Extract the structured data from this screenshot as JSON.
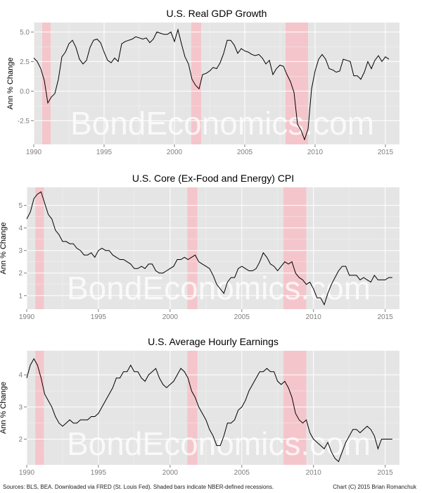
{
  "watermark": "BondEconomics.com",
  "source_note": "Sources: BLS, BEA. Downloaded via FRED (St. Louis Fed). Shaded bars indicate NBER-defined recessions.",
  "credit_note": "Chart (C) 2015 Brian Romanchuk",
  "colors": {
    "panel_bg": "#e5e5e5",
    "grid": "#ffffff",
    "line": "#000000",
    "recession": "#f4c6cc",
    "watermark": "#ffffff"
  },
  "chart_data": [
    {
      "type": "line",
      "title": "U.S. Real GDP Growth",
      "ylabel": "Ann % Change",
      "xlim": [
        1990,
        2016
      ],
      "ylim": [
        -4.5,
        5.8
      ],
      "xticks": [
        "1990",
        "1995",
        "2000",
        "2005",
        "2010",
        "2015"
      ],
      "yticks": [
        "-2.5",
        "0.0",
        "2.5",
        "5.0"
      ],
      "ytick_values": [
        -2.5,
        0,
        2.5,
        5
      ],
      "recessions": [
        [
          1990.6,
          1991.2
        ],
        [
          2001.2,
          2001.9
        ],
        [
          2007.9,
          2009.5
        ]
      ],
      "series": [
        {
          "x": [
            1990.0,
            1990.25,
            1990.5,
            1990.75,
            1991.0,
            1991.25,
            1991.5,
            1991.75,
            1992.0,
            1992.25,
            1992.5,
            1992.75,
            1993.0,
            1993.25,
            1993.5,
            1993.75,
            1994.0,
            1994.25,
            1994.5,
            1994.75,
            1995.0,
            1995.25,
            1995.5,
            1995.75,
            1996.0,
            1996.25,
            1996.5,
            1996.75,
            1997.0,
            1997.25,
            1997.5,
            1997.75,
            1998.0,
            1998.25,
            1998.5,
            1998.75,
            1999.0,
            1999.25,
            1999.5,
            1999.75,
            2000.0,
            2000.25,
            2000.5,
            2000.75,
            2001.0,
            2001.25,
            2001.5,
            2001.75,
            2002.0,
            2002.25,
            2002.5,
            2002.75,
            2003.0,
            2003.25,
            2003.5,
            2003.75,
            2004.0,
            2004.25,
            2004.5,
            2004.75,
            2005.0,
            2005.25,
            2005.5,
            2005.75,
            2006.0,
            2006.25,
            2006.5,
            2006.75,
            2007.0,
            2007.25,
            2007.5,
            2007.75,
            2008.0,
            2008.25,
            2008.5,
            2008.75,
            2009.0,
            2009.25,
            2009.5,
            2009.75,
            2010.0,
            2010.25,
            2010.5,
            2010.75,
            2011.0,
            2011.25,
            2011.5,
            2011.75,
            2012.0,
            2012.25,
            2012.5,
            2012.75,
            2013.0,
            2013.25,
            2013.5,
            2013.75,
            2014.0,
            2014.25,
            2014.5,
            2014.75,
            2015.0,
            2015.25
          ],
          "values": [
            2.8,
            2.5,
            1.9,
            0.9,
            -1.0,
            -0.5,
            -0.2,
            1.0,
            2.9,
            3.3,
            4.0,
            4.3,
            3.7,
            2.7,
            2.3,
            2.6,
            3.7,
            4.3,
            4.4,
            4.1,
            3.3,
            2.6,
            2.4,
            2.8,
            2.5,
            4.0,
            4.2,
            4.3,
            4.4,
            4.6,
            4.5,
            4.4,
            4.5,
            4.1,
            4.4,
            5.0,
            4.9,
            4.8,
            4.8,
            5.0,
            4.2,
            5.2,
            4.0,
            2.9,
            2.3,
            1.0,
            0.5,
            0.2,
            1.4,
            1.5,
            1.7,
            2.0,
            1.9,
            2.4,
            3.2,
            4.3,
            4.3,
            3.9,
            3.2,
            3.6,
            3.4,
            3.3,
            3.1,
            3.0,
            3.1,
            2.8,
            2.3,
            2.6,
            1.4,
            1.9,
            2.2,
            2.1,
            1.4,
            0.8,
            -0.1,
            -2.8,
            -3.3,
            -4.1,
            -3.2,
            0.2,
            1.7,
            2.7,
            3.1,
            2.7,
            1.9,
            1.8,
            1.6,
            1.7,
            2.7,
            2.6,
            2.5,
            1.3,
            1.3,
            1.0,
            1.6,
            2.5,
            1.9,
            2.6,
            3.0,
            2.5,
            2.9,
            2.7
          ]
        }
      ]
    },
    {
      "type": "line",
      "title": "U.S. Core (Ex-Food and Energy) CPI",
      "ylabel": "Ann % Change",
      "xlim": [
        1990,
        2016
      ],
      "ylim": [
        0.4,
        5.8
      ],
      "xticks": [
        "1990",
        "1995",
        "2000",
        "2005",
        "2010",
        "2015"
      ],
      "yticks": [
        "1",
        "2",
        "3",
        "4",
        "5"
      ],
      "ytick_values": [
        1,
        2,
        3,
        4,
        5
      ],
      "recessions": [
        [
          1990.6,
          1991.2
        ],
        [
          2001.2,
          2001.9
        ],
        [
          2007.9,
          2009.5
        ]
      ],
      "series": [
        {
          "x": [
            1990.0,
            1990.25,
            1990.5,
            1990.75,
            1991.0,
            1991.25,
            1991.5,
            1991.75,
            1992.0,
            1992.25,
            1992.5,
            1992.75,
            1993.0,
            1993.25,
            1993.5,
            1993.75,
            1994.0,
            1994.25,
            1994.5,
            1994.75,
            1995.0,
            1995.25,
            1995.5,
            1995.75,
            1996.0,
            1996.25,
            1996.5,
            1996.75,
            1997.0,
            1997.25,
            1997.5,
            1997.75,
            1998.0,
            1998.25,
            1998.5,
            1998.75,
            1999.0,
            1999.25,
            1999.5,
            1999.75,
            2000.0,
            2000.25,
            2000.5,
            2000.75,
            2001.0,
            2001.25,
            2001.5,
            2001.75,
            2002.0,
            2002.25,
            2002.5,
            2002.75,
            2003.0,
            2003.25,
            2003.5,
            2003.75,
            2004.0,
            2004.25,
            2004.5,
            2004.75,
            2005.0,
            2005.25,
            2005.5,
            2005.75,
            2006.0,
            2006.25,
            2006.5,
            2006.75,
            2007.0,
            2007.25,
            2007.5,
            2007.75,
            2008.0,
            2008.25,
            2008.5,
            2008.75,
            2009.0,
            2009.25,
            2009.5,
            2009.75,
            2010.0,
            2010.25,
            2010.5,
            2010.75,
            2011.0,
            2011.25,
            2011.5,
            2011.75,
            2012.0,
            2012.25,
            2012.5,
            2012.75,
            2013.0,
            2013.25,
            2013.5,
            2013.75,
            2014.0,
            2014.25,
            2014.5,
            2014.75,
            2015.0,
            2015.25,
            2015.5
          ],
          "values": [
            4.4,
            4.7,
            5.3,
            5.5,
            5.6,
            5.1,
            4.6,
            4.4,
            3.9,
            3.7,
            3.4,
            3.4,
            3.3,
            3.3,
            3.1,
            3.0,
            2.8,
            2.8,
            2.9,
            2.7,
            3.0,
            3.1,
            3.0,
            3.0,
            2.8,
            2.7,
            2.6,
            2.6,
            2.5,
            2.4,
            2.2,
            2.2,
            2.3,
            2.2,
            2.4,
            2.4,
            2.1,
            2.0,
            2.0,
            2.1,
            2.2,
            2.3,
            2.6,
            2.6,
            2.7,
            2.6,
            2.7,
            2.8,
            2.5,
            2.4,
            2.3,
            2.2,
            1.9,
            1.5,
            1.3,
            1.1,
            1.6,
            1.8,
            1.8,
            2.2,
            2.3,
            2.2,
            2.1,
            2.1,
            2.2,
            2.5,
            2.9,
            2.7,
            2.4,
            2.3,
            2.1,
            2.3,
            2.5,
            2.4,
            2.5,
            2.0,
            1.8,
            1.7,
            1.5,
            1.6,
            1.3,
            0.9,
            0.9,
            0.6,
            1.1,
            1.5,
            1.8,
            2.1,
            2.3,
            2.3,
            1.9,
            1.9,
            1.9,
            1.7,
            1.8,
            1.7,
            1.6,
            1.9,
            1.7,
            1.7,
            1.7,
            1.8,
            1.8
          ]
        }
      ]
    },
    {
      "type": "line",
      "title": "U.S. Average Hourly Earnings",
      "ylabel": "Ann % Change",
      "xlim": [
        1990,
        2016
      ],
      "ylim": [
        1.2,
        4.75
      ],
      "xticks": [
        "1990",
        "1995",
        "2000",
        "2005",
        "2010",
        "2015"
      ],
      "yticks": [
        "2",
        "3",
        "4"
      ],
      "ytick_values": [
        2,
        3,
        4
      ],
      "recessions": [
        [
          1990.6,
          1991.2
        ],
        [
          2001.2,
          2001.9
        ],
        [
          2007.9,
          2009.5
        ]
      ],
      "series": [
        {
          "x": [
            1990.0,
            1990.25,
            1990.5,
            1990.75,
            1991.0,
            1991.25,
            1991.5,
            1991.75,
            1992.0,
            1992.25,
            1992.5,
            1992.75,
            1993.0,
            1993.25,
            1993.5,
            1993.75,
            1994.0,
            1994.25,
            1994.5,
            1994.75,
            1995.0,
            1995.25,
            1995.5,
            1995.75,
            1996.0,
            1996.25,
            1996.5,
            1996.75,
            1997.0,
            1997.25,
            1997.5,
            1997.75,
            1998.0,
            1998.25,
            1998.5,
            1998.75,
            1999.0,
            1999.25,
            1999.5,
            1999.75,
            2000.0,
            2000.25,
            2000.5,
            2000.75,
            2001.0,
            2001.25,
            2001.5,
            2001.75,
            2002.0,
            2002.25,
            2002.5,
            2002.75,
            2003.0,
            2003.25,
            2003.5,
            2003.75,
            2004.0,
            2004.25,
            2004.5,
            2004.75,
            2005.0,
            2005.25,
            2005.5,
            2005.75,
            2006.0,
            2006.25,
            2006.5,
            2006.75,
            2007.0,
            2007.25,
            2007.5,
            2007.75,
            2008.0,
            2008.25,
            2008.5,
            2008.75,
            2009.0,
            2009.25,
            2009.5,
            2009.75,
            2010.0,
            2010.25,
            2010.5,
            2010.75,
            2011.0,
            2011.25,
            2011.5,
            2011.75,
            2012.0,
            2012.25,
            2012.5,
            2012.75,
            2013.0,
            2013.25,
            2013.5,
            2013.75,
            2014.0,
            2014.25,
            2014.5,
            2014.75,
            2015.0,
            2015.25,
            2015.5
          ],
          "values": [
            3.9,
            4.3,
            4.5,
            4.3,
            3.9,
            3.4,
            3.2,
            3.0,
            2.7,
            2.5,
            2.4,
            2.5,
            2.6,
            2.5,
            2.5,
            2.6,
            2.6,
            2.6,
            2.7,
            2.7,
            2.8,
            3.0,
            3.2,
            3.4,
            3.6,
            3.9,
            3.9,
            4.1,
            4.1,
            4.3,
            4.1,
            4.1,
            3.9,
            3.8,
            4.0,
            4.1,
            4.2,
            3.9,
            3.7,
            3.6,
            3.7,
            3.8,
            4.0,
            4.2,
            4.1,
            3.9,
            3.5,
            3.3,
            3.0,
            2.8,
            2.6,
            2.3,
            2.1,
            1.8,
            1.8,
            2.1,
            2.5,
            2.5,
            2.6,
            2.9,
            3.0,
            3.2,
            3.5,
            3.7,
            3.9,
            4.1,
            4.1,
            4.2,
            4.1,
            4.1,
            3.8,
            3.7,
            3.8,
            3.6,
            3.3,
            2.8,
            2.6,
            2.5,
            2.6,
            2.2,
            2.0,
            1.9,
            1.8,
            1.7,
            1.9,
            1.6,
            1.4,
            1.3,
            1.6,
            1.9,
            2.1,
            2.3,
            2.3,
            2.2,
            2.3,
            2.4,
            2.3,
            2.1,
            1.7,
            2.0,
            2.0,
            2.0,
            2.0
          ]
        }
      ]
    }
  ]
}
